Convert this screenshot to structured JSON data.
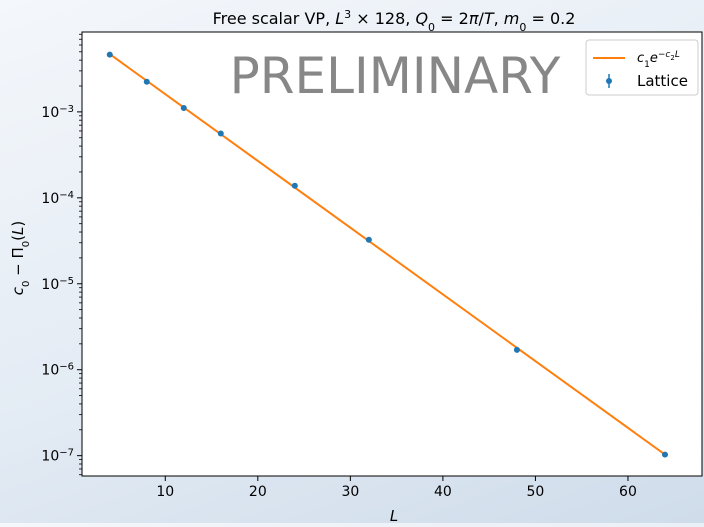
{
  "chart_data": {
    "type": "scatter",
    "title": {
      "main": "Free scalar VP, ",
      "math": {
        "L": "L",
        "exp3": "3",
        "times128": " × 128, ",
        "Q": "Q",
        "sub0": "0",
        "eq1": " = 2",
        "pi": "π",
        "slashT": "/",
        "T": "T",
        "comma": ", ",
        "m": "m",
        "sub0b": "0",
        "eq2": " = 0.2"
      }
    },
    "watermark": "PRELIMINARY",
    "xlabel": "L",
    "ylabel": {
      "c": "c",
      "sub0": "0",
      "minus": " − Π",
      "sub0b": "0",
      "paren": "(",
      "L": "L",
      "close": ")"
    },
    "xlim": [
      1,
      68
    ],
    "ylim": [
      5.8e-08,
      0.0085
    ],
    "yscale": "log",
    "grid": false,
    "legend_position": "top-right",
    "xticks": [
      {
        "value": 10,
        "label": "10"
      },
      {
        "value": 20,
        "label": "20"
      },
      {
        "value": 30,
        "label": "30"
      },
      {
        "value": 40,
        "label": "40"
      },
      {
        "value": 50,
        "label": "50"
      },
      {
        "value": 60,
        "label": "60"
      }
    ],
    "yticks": [
      {
        "value": 1e-07,
        "base": "10",
        "exp": "−7"
      },
      {
        "value": 1e-06,
        "base": "10",
        "exp": "−6"
      },
      {
        "value": 1e-05,
        "base": "10",
        "exp": "−5"
      },
      {
        "value": 0.0001,
        "base": "10",
        "exp": "−4"
      },
      {
        "value": 0.001,
        "base": "10",
        "exp": "−3"
      }
    ],
    "series": [
      {
        "kind": "line",
        "color": "#ff7f0e",
        "legend": {
          "c": "c",
          "sub1": "1",
          "e": "e",
          "exp": "−c",
          "expsub": "2",
          "expL": "L"
        },
        "x": [
          4,
          64
        ],
        "y": [
          0.0047,
          1.03e-07
        ]
      },
      {
        "kind": "errorbar",
        "color": "#1f77b4",
        "legend_label": "Lattice",
        "x": [
          4,
          8,
          12,
          16,
          24,
          32,
          48,
          64
        ],
        "y": [
          0.00464,
          0.00224,
          0.00111,
          0.00056,
          0.000138,
          3.25e-05,
          1.7e-06,
          1.03e-07
        ]
      }
    ]
  }
}
